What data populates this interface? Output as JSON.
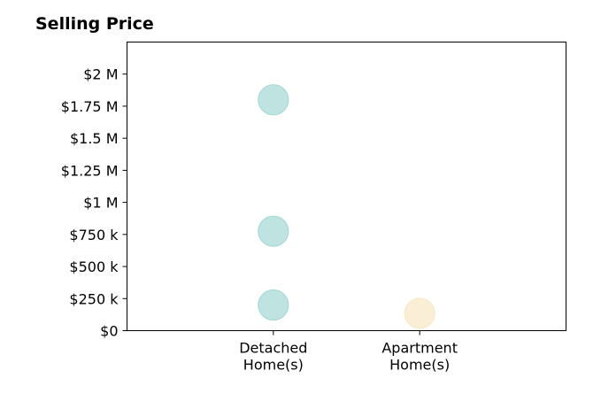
{
  "chart_data": {
    "type": "scatter",
    "title": "Selling Price",
    "xlabel": "",
    "ylabel": "",
    "categories": [
      {
        "line1": "Detached",
        "line2": "Home(s)"
      },
      {
        "line1": "Apartment",
        "line2": "Home(s)"
      }
    ],
    "y_ticks": [
      {
        "value": 0,
        "label": "$0"
      },
      {
        "value": 250000,
        "label": "$250 k"
      },
      {
        "value": 500000,
        "label": "$500 k"
      },
      {
        "value": 750000,
        "label": "$750 k"
      },
      {
        "value": 1000000,
        "label": "$1 M"
      },
      {
        "value": 1250000,
        "label": "$1.25 M"
      },
      {
        "value": 1500000,
        "label": "$1.5 M"
      },
      {
        "value": 1750000,
        "label": "$1.75 M"
      },
      {
        "value": 2000000,
        "label": "$2 M"
      }
    ],
    "ylim": [
      0,
      2250000
    ],
    "xlim": [
      -1,
      2
    ],
    "grid": false,
    "points": [
      {
        "category": 0,
        "y": 200000,
        "color": "#a8dad6"
      },
      {
        "category": 0,
        "y": 775000,
        "color": "#a8dad6"
      },
      {
        "category": 0,
        "y": 1800000,
        "color": "#a8dad6"
      },
      {
        "category": 1,
        "y": 135000,
        "color": "#f8e8c8"
      }
    ]
  }
}
